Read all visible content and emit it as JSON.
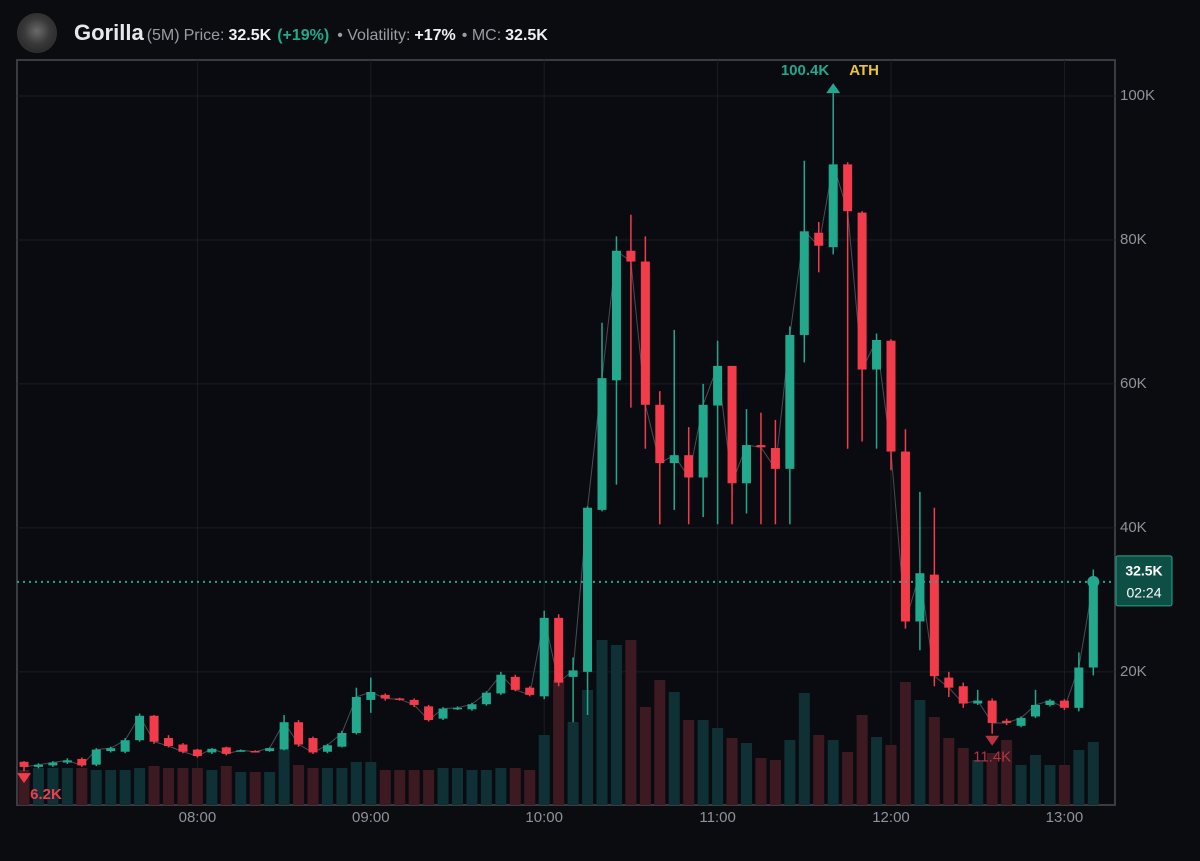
{
  "header": {
    "name": "Gorilla",
    "interval": "(5M)",
    "price_label": "Price:",
    "price": "32.5K",
    "change": "(+19%)",
    "volatility_label": "• Volatility:",
    "volatility": "+17%",
    "mc_label": "• MC:",
    "mc": "32.5K"
  },
  "chart_data": {
    "type": "candlestick",
    "x": [
      "07:00",
      "07:05",
      "07:10",
      "07:15",
      "07:20",
      "07:25",
      "07:30",
      "07:35",
      "07:40",
      "07:45",
      "07:50",
      "07:55",
      "08:00",
      "08:05",
      "08:10",
      "08:15",
      "08:20",
      "08:25",
      "08:30",
      "08:35",
      "08:40",
      "08:45",
      "08:50",
      "08:55",
      "09:00",
      "09:05",
      "09:10",
      "09:15",
      "09:20",
      "09:25",
      "09:30",
      "09:35",
      "09:40",
      "09:45",
      "09:50",
      "09:55",
      "10:00",
      "10:05",
      "10:10",
      "10:15",
      "10:20",
      "10:25",
      "10:30",
      "10:35",
      "10:40",
      "10:45",
      "10:50",
      "10:55",
      "11:00",
      "11:05",
      "11:10",
      "11:15",
      "11:20",
      "11:25",
      "11:30",
      "11:35",
      "11:40",
      "11:45",
      "11:50",
      "11:55",
      "12:00",
      "12:05",
      "12:10",
      "12:15",
      "12:20",
      "12:25",
      "12:30",
      "12:35",
      "12:40",
      "12:45",
      "12:50",
      "12:55",
      "13:00",
      "13:05",
      "13:10"
    ],
    "open": [
      7500,
      6800,
      7000,
      7400,
      7900,
      7100,
      9000,
      8900,
      10500,
      13900,
      10800,
      9900,
      9200,
      8800,
      9500,
      9000,
      9000,
      9000,
      9200,
      13000,
      10800,
      8900,
      9600,
      11500,
      16100,
      16800,
      16300,
      16100,
      15200,
      13500,
      14900,
      14800,
      15500,
      17000,
      19300,
      17800,
      16600,
      27500,
      19300,
      20000,
      42500,
      60500,
      78500,
      77000,
      57100,
      49000,
      50100,
      47000,
      57000,
      62500,
      46200,
      51500,
      51100,
      48200,
      66800,
      81000,
      79000,
      90500,
      83800,
      62000,
      66000,
      50600,
      27000,
      33500,
      19200,
      18000,
      15600,
      16000,
      13200,
      12500,
      13800,
      15400,
      16000,
      15000,
      20600
    ],
    "high": [
      7600,
      7300,
      7600,
      8000,
      8100,
      9400,
      9600,
      10800,
      14200,
      14000,
      11200,
      10100,
      9300,
      9400,
      9600,
      9200,
      9100,
      9500,
      14000,
      13300,
      11000,
      10000,
      11800,
      17800,
      19200,
      17000,
      16400,
      16300,
      15400,
      15100,
      15200,
      15700,
      17300,
      20000,
      19600,
      18000,
      28500,
      28000,
      22000,
      43000,
      68500,
      80500,
      83500,
      80500,
      59000,
      67500,
      54000,
      60000,
      66000,
      62500,
      56500,
      56000,
      55000,
      68000,
      91000,
      82500,
      100400,
      90800,
      84000,
      67000,
      66200,
      53700,
      45000,
      42800,
      20000,
      18500,
      17500,
      16300,
      13500,
      13800,
      17500,
      16200,
      16200,
      22700,
      34200
    ],
    "low": [
      6200,
      6600,
      6800,
      7200,
      6800,
      6900,
      8800,
      8700,
      10300,
      10000,
      9500,
      8700,
      8100,
      8600,
      8400,
      8900,
      8800,
      8900,
      9100,
      9600,
      8600,
      8700,
      9500,
      11300,
      14300,
      16000,
      16000,
      15100,
      13100,
      13300,
      14700,
      14600,
      15300,
      16800,
      17300,
      16600,
      16200,
      18000,
      13000,
      14000,
      42300,
      46000,
      56700,
      51000,
      40500,
      42500,
      40500,
      41500,
      40500,
      40500,
      42000,
      40500,
      40500,
      40500,
      63000,
      75500,
      78000,
      51000,
      52000,
      51000,
      48000,
      26000,
      23000,
      18000,
      16500,
      15000,
      15400,
      11400,
      12600,
      12300,
      13600,
      15200,
      14700,
      14500,
      19500
    ],
    "close": [
      6800,
      7100,
      7400,
      7700,
      7000,
      9200,
      9400,
      10500,
      13900,
      10300,
      9700,
      8900,
      8300,
      9300,
      8600,
      9100,
      8900,
      9400,
      13000,
      9900,
      8800,
      9800,
      11500,
      16500,
      17200,
      16300,
      16200,
      15400,
      13300,
      14900,
      15000,
      15500,
      17100,
      19600,
      17500,
      16800,
      27500,
      18500,
      20200,
      42800,
      60800,
      78500,
      77000,
      57100,
      49000,
      50100,
      47000,
      57100,
      62500,
      46200,
      51500,
      51200,
      48200,
      66800,
      81200,
      79200,
      90500,
      84000,
      62000,
      66100,
      50600,
      27000,
      33700,
      19400,
      17800,
      15600,
      16000,
      12900,
      12900,
      13600,
      15400,
      16000,
      15000,
      20600,
      32500
    ],
    "volume": [
      35,
      37,
      37,
      37,
      37,
      35,
      35,
      35,
      37,
      39,
      37,
      37,
      37,
      35,
      39,
      33,
      33,
      33,
      55,
      40,
      37,
      37,
      37,
      43,
      43,
      35,
      35,
      35,
      35,
      37,
      37,
      35,
      35,
      37,
      37,
      35,
      70,
      125,
      83,
      115,
      165,
      160,
      165,
      98,
      125,
      113,
      85,
      85,
      77,
      67,
      62,
      47,
      45,
      65,
      112,
      70,
      65,
      53,
      90,
      68,
      60,
      123,
      105,
      88,
      67,
      57,
      45,
      52,
      65,
      40,
      50,
      40,
      40,
      55,
      63
    ],
    "up_color": "#22a88c",
    "down_color": "#f23c4c",
    "up_volume_color": "#0f3034",
    "down_volume_color": "#3d1a22",
    "ylim": [
      1500,
      105000
    ],
    "yticks": [
      {
        "value": 20000,
        "label": "20K"
      },
      {
        "value": 40000,
        "label": "40K"
      },
      {
        "value": 60000,
        "label": "60K"
      },
      {
        "value": 80000,
        "label": "80K"
      },
      {
        "value": 100000,
        "label": "100K"
      }
    ],
    "xticks": [
      "08:00",
      "09:00",
      "10:00",
      "11:00",
      "12:00",
      "13:00"
    ],
    "grid": true,
    "markers": [
      {
        "value": 100400,
        "label": "100.4K",
        "note": "ATH",
        "side": "high",
        "color": "#22a88c"
      },
      {
        "value": 6200,
        "label": "6.2K",
        "side": "low",
        "color": "#f23c4c"
      },
      {
        "value": 11400,
        "label": "11.4K",
        "side": "low",
        "color": "#b8333f"
      }
    ],
    "last_price": {
      "value": 32500,
      "label": "32.5K",
      "countdown": "02:24"
    }
  }
}
